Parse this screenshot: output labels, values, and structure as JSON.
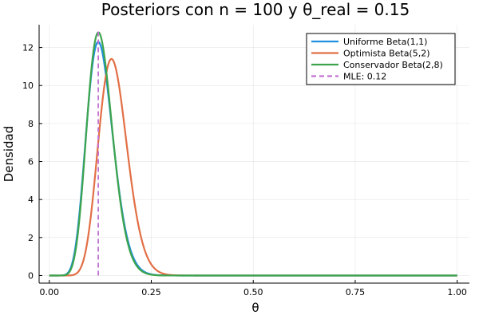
{
  "chart_data": {
    "type": "line",
    "title": "Posteriors con n = 100 y θ_real = 0.15",
    "xlabel": "θ",
    "ylabel": "Densidad",
    "xlim": [
      -0.025,
      1.03
    ],
    "ylim": [
      -0.4,
      13.2
    ],
    "xticks": [
      0.0,
      0.25,
      0.5,
      0.75,
      1.0
    ],
    "xtick_labels": [
      "0.00",
      "0.25",
      "0.50",
      "0.75",
      "1.00"
    ],
    "yticks": [
      0,
      2,
      4,
      6,
      8,
      10,
      12
    ],
    "ytick_labels": [
      "0",
      "2",
      "4",
      "6",
      "8",
      "10",
      "12"
    ],
    "grid": true,
    "legend_position": "top-right",
    "series": [
      {
        "name": "Uniforme Beta(1,1)",
        "distribution": {
          "alpha": 13,
          "beta": 89
        },
        "color": "#1f8fe0",
        "style": "solid",
        "peak": 12.3
      },
      {
        "name": "Optimista Beta(5,2)",
        "distribution": {
          "alpha": 17,
          "beta": 90
        },
        "color": "#e26f46",
        "style": "solid",
        "peak": 11.4
      },
      {
        "name": "Conservador Beta(2,8)",
        "distribution": {
          "alpha": 14,
          "beta": 96
        },
        "color": "#3da44d",
        "style": "solid",
        "peak": 12.8
      }
    ],
    "vlines": [
      {
        "name": "MLE: 0.12",
        "x": 0.12,
        "y_range": [
          0,
          12.85
        ],
        "color": "#c271d2",
        "style": "dashed"
      }
    ]
  }
}
